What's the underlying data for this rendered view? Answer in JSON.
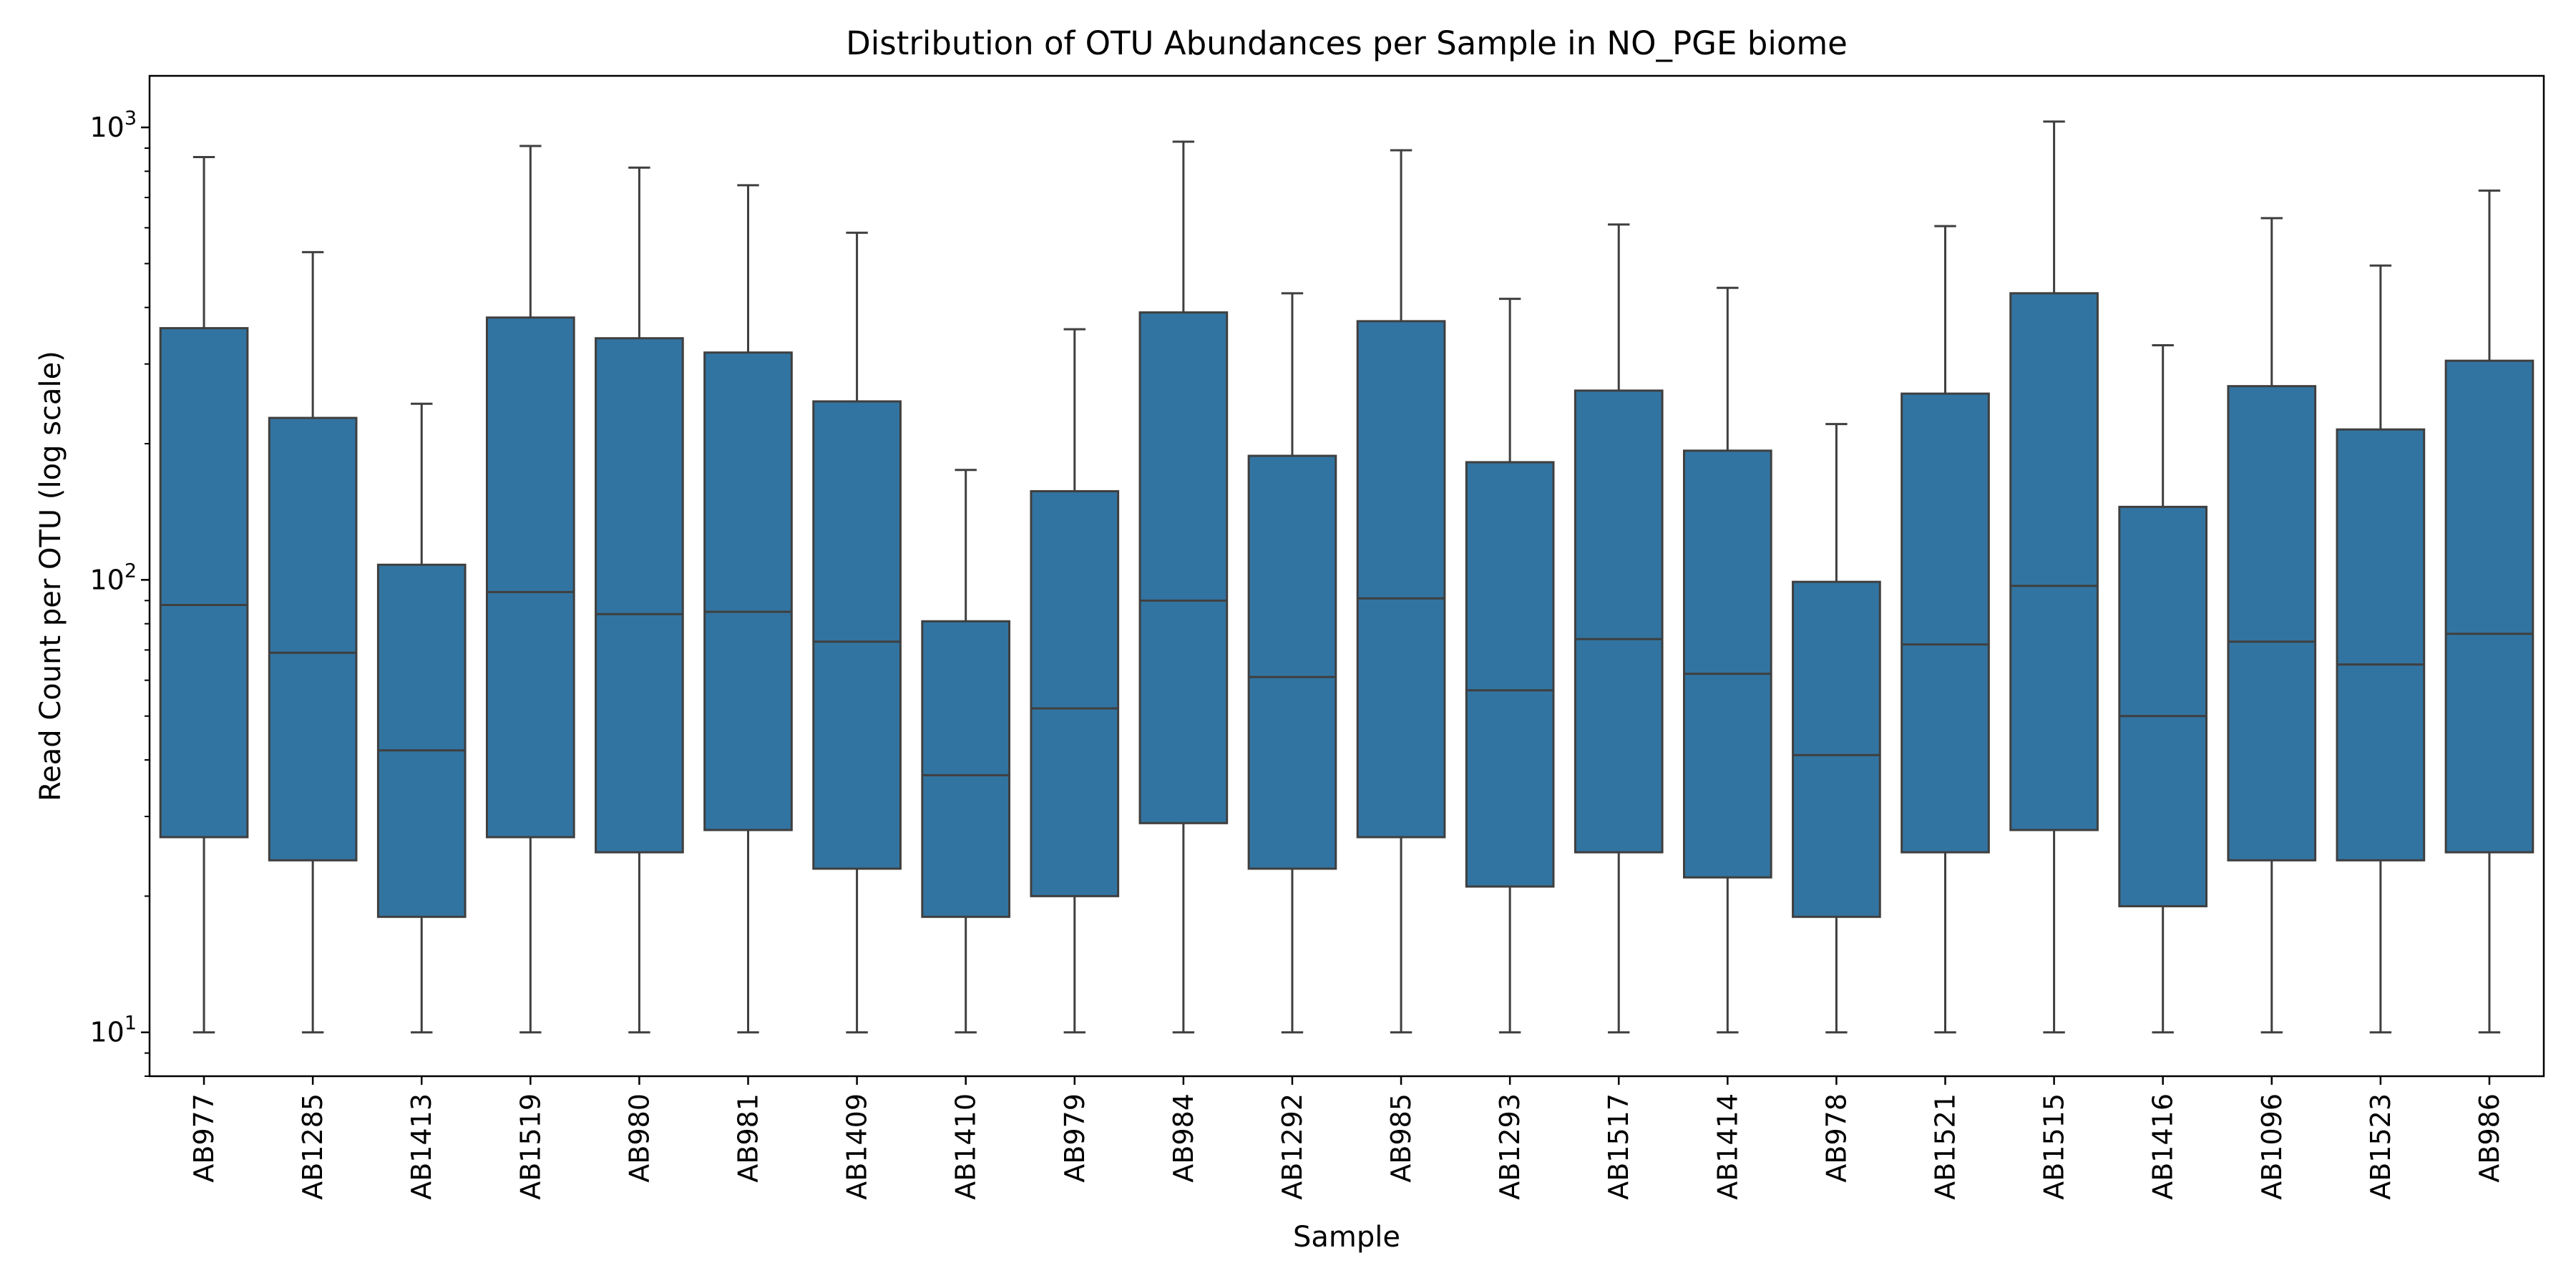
{
  "chart_data": {
    "type": "box",
    "title": "Distribution of OTU Abundances per Sample in NO_PGE biome",
    "xlabel": "Sample",
    "ylabel": "Read Count per OTU (log scale)",
    "yscale": "log",
    "ylim": [
      8,
      1300
    ],
    "y_ticks": [
      {
        "value": 10,
        "base": "10",
        "exp": "1"
      },
      {
        "value": 100,
        "base": "10",
        "exp": "2"
      },
      {
        "value": 1000,
        "base": "10",
        "exp": "3"
      }
    ],
    "box_color": "#3274a1",
    "grid": false,
    "categories": [
      "AB977",
      "AB1285",
      "AB1413",
      "AB1519",
      "AB980",
      "AB981",
      "AB1409",
      "AB1410",
      "AB979",
      "AB984",
      "AB1292",
      "AB985",
      "AB1293",
      "AB1517",
      "AB1414",
      "AB978",
      "AB1521",
      "AB1515",
      "AB1416",
      "AB1096",
      "AB1523",
      "AB986"
    ],
    "series": [
      {
        "whisker_low": 10,
        "q1": 27,
        "median": 88,
        "q3": 360,
        "whisker_high": 860
      },
      {
        "whisker_low": 10,
        "q1": 24,
        "median": 69,
        "q3": 228,
        "whisker_high": 530
      },
      {
        "whisker_low": 10,
        "q1": 18,
        "median": 42,
        "q3": 108,
        "whisker_high": 245
      },
      {
        "whisker_low": 10,
        "q1": 27,
        "median": 94,
        "q3": 380,
        "whisker_high": 910
      },
      {
        "whisker_low": 10,
        "q1": 25,
        "median": 84,
        "q3": 342,
        "whisker_high": 815
      },
      {
        "whisker_low": 10,
        "q1": 28,
        "median": 85,
        "q3": 318,
        "whisker_high": 745
      },
      {
        "whisker_low": 10,
        "q1": 23,
        "median": 73,
        "q3": 248,
        "whisker_high": 585
      },
      {
        "whisker_low": 10,
        "q1": 18,
        "median": 37,
        "q3": 81,
        "whisker_high": 175
      },
      {
        "whisker_low": 10,
        "q1": 20,
        "median": 52,
        "q3": 157,
        "whisker_high": 358
      },
      {
        "whisker_low": 10,
        "q1": 29,
        "median": 90,
        "q3": 390,
        "whisker_high": 930
      },
      {
        "whisker_low": 10,
        "q1": 23,
        "median": 61,
        "q3": 188,
        "whisker_high": 430
      },
      {
        "whisker_low": 10,
        "q1": 27,
        "median": 91,
        "q3": 373,
        "whisker_high": 890
      },
      {
        "whisker_low": 10,
        "q1": 21,
        "median": 57,
        "q3": 182,
        "whisker_high": 418
      },
      {
        "whisker_low": 10,
        "q1": 25,
        "median": 74,
        "q3": 262,
        "whisker_high": 610
      },
      {
        "whisker_low": 10,
        "q1": 22,
        "median": 62,
        "q3": 193,
        "whisker_high": 442
      },
      {
        "whisker_low": 10,
        "q1": 18,
        "median": 41,
        "q3": 99,
        "whisker_high": 221
      },
      {
        "whisker_low": 10,
        "q1": 25,
        "median": 72,
        "q3": 258,
        "whisker_high": 605
      },
      {
        "whisker_low": 10,
        "q1": 28,
        "median": 97,
        "q3": 430,
        "whisker_high": 1030
      },
      {
        "whisker_low": 10,
        "q1": 19,
        "median": 50,
        "q3": 145,
        "whisker_high": 330
      },
      {
        "whisker_low": 10,
        "q1": 24,
        "median": 73,
        "q3": 268,
        "whisker_high": 630
      },
      {
        "whisker_low": 10,
        "q1": 24,
        "median": 65,
        "q3": 215,
        "whisker_high": 495
      },
      {
        "whisker_low": 10,
        "q1": 25,
        "median": 76,
        "q3": 305,
        "whisker_high": 725
      }
    ]
  }
}
